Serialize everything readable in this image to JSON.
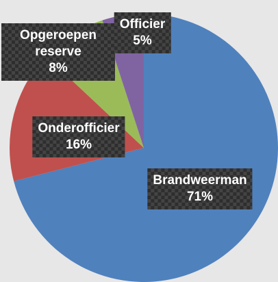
{
  "chart_data": {
    "type": "pie",
    "categories": [
      "Brandweerman",
      "Onderofficier",
      "Opgeroepen reserve",
      "Officier"
    ],
    "values": [
      71,
      16,
      8,
      5
    ],
    "value_labels": [
      "71%",
      "16%",
      "8%",
      "5%"
    ],
    "colors": [
      "#4f81bd",
      "#c0504d",
      "#9bbb59",
      "#8064a2"
    ]
  }
}
